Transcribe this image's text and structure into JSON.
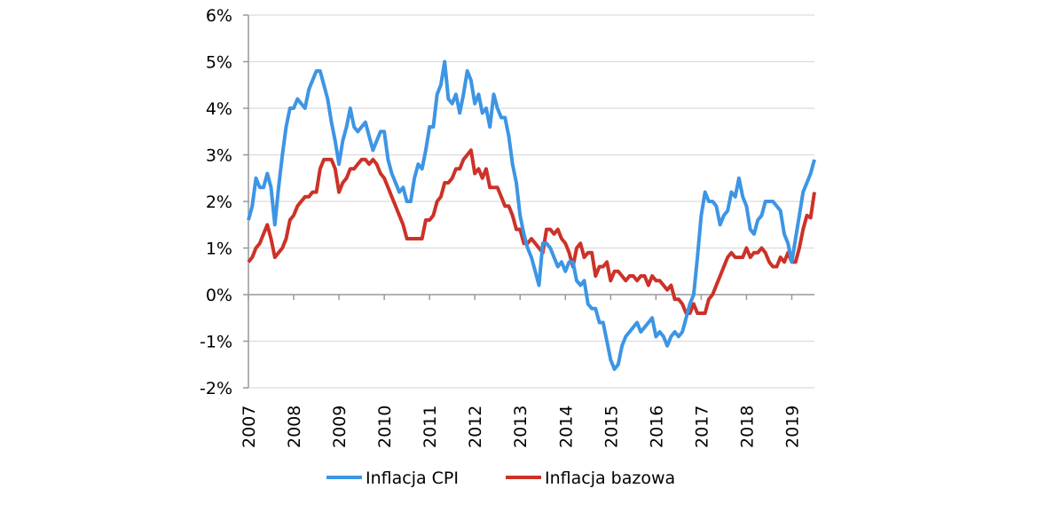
{
  "chart_data": {
    "type": "line",
    "title": "",
    "xlabel": "",
    "ylabel": "",
    "x_start": "2007-01",
    "x_end": "2019-07",
    "x_frequency": "monthly",
    "x_tick_labels": [
      "2007",
      "2008",
      "2009",
      "2010",
      "2011",
      "2012",
      "2013",
      "2014",
      "2015",
      "2016",
      "2017",
      "2018",
      "2019"
    ],
    "y_tick_labels": [
      "6%",
      "5%",
      "4%",
      "3%",
      "2%",
      "1%",
      "0%",
      "-1%",
      "-2%"
    ],
    "ylim": [
      -2,
      6
    ],
    "grid": "horizontal",
    "legend_position": "bottom",
    "series": [
      {
        "name": "Inflacja CPI",
        "color": "#3d95e4",
        "values": [
          1.6,
          1.9,
          2.5,
          2.3,
          2.3,
          2.6,
          2.3,
          1.5,
          2.3,
          3.0,
          3.6,
          4.0,
          4.0,
          4.2,
          4.1,
          4.0,
          4.4,
          4.6,
          4.8,
          4.8,
          4.5,
          4.2,
          3.7,
          3.3,
          2.8,
          3.3,
          3.6,
          4.0,
          3.6,
          3.5,
          3.6,
          3.7,
          3.4,
          3.1,
          3.3,
          3.5,
          3.5,
          2.9,
          2.6,
          2.4,
          2.2,
          2.3,
          2.0,
          2.0,
          2.5,
          2.8,
          2.7,
          3.1,
          3.6,
          3.6,
          4.3,
          4.5,
          5.0,
          4.2,
          4.1,
          4.3,
          3.9,
          4.3,
          4.8,
          4.6,
          4.1,
          4.3,
          3.9,
          4.0,
          3.6,
          4.3,
          4.0,
          3.8,
          3.8,
          3.4,
          2.8,
          2.4,
          1.7,
          1.3,
          1.0,
          0.8,
          0.5,
          0.2,
          1.1,
          1.1,
          1.0,
          0.8,
          0.6,
          0.7,
          0.5,
          0.7,
          0.7,
          0.3,
          0.2,
          0.3,
          -0.2,
          -0.3,
          -0.3,
          -0.6,
          -0.6,
          -1.0,
          -1.4,
          -1.6,
          -1.5,
          -1.1,
          -0.9,
          -0.8,
          -0.7,
          -0.6,
          -0.8,
          -0.7,
          -0.6,
          -0.5,
          -0.9,
          -0.8,
          -0.9,
          -1.1,
          -0.9,
          -0.8,
          -0.9,
          -0.8,
          -0.5,
          -0.2,
          0.0,
          0.8,
          1.7,
          2.2,
          2.0,
          2.0,
          1.9,
          1.5,
          1.7,
          1.8,
          2.2,
          2.1,
          2.5,
          2.1,
          1.9,
          1.4,
          1.3,
          1.6,
          1.7,
          2.0,
          2.0,
          2.0,
          1.9,
          1.8,
          1.3,
          1.1,
          0.7,
          1.2,
          1.7,
          2.2,
          2.4,
          2.6,
          2.9
        ]
      },
      {
        "name": "Inflacja bazowa",
        "color": "#cc3228",
        "values": [
          0.7,
          0.8,
          1.0,
          1.1,
          1.3,
          1.5,
          1.2,
          0.8,
          0.9,
          1.0,
          1.2,
          1.6,
          1.7,
          1.9,
          2.0,
          2.1,
          2.1,
          2.2,
          2.2,
          2.7,
          2.9,
          2.9,
          2.9,
          2.7,
          2.2,
          2.4,
          2.5,
          2.7,
          2.7,
          2.8,
          2.9,
          2.9,
          2.8,
          2.9,
          2.8,
          2.6,
          2.5,
          2.3,
          2.1,
          1.9,
          1.7,
          1.5,
          1.2,
          1.2,
          1.2,
          1.2,
          1.2,
          1.6,
          1.6,
          1.7,
          2.0,
          2.1,
          2.4,
          2.4,
          2.5,
          2.7,
          2.7,
          2.9,
          3.0,
          3.1,
          2.6,
          2.7,
          2.5,
          2.7,
          2.3,
          2.3,
          2.3,
          2.1,
          1.9,
          1.9,
          1.7,
          1.4,
          1.4,
          1.1,
          1.1,
          1.2,
          1.1,
          1.0,
          0.9,
          1.4,
          1.4,
          1.3,
          1.4,
          1.2,
          1.1,
          0.9,
          0.6,
          1.0,
          1.1,
          0.8,
          0.9,
          0.9,
          0.4,
          0.6,
          0.6,
          0.7,
          0.3,
          0.5,
          0.5,
          0.4,
          0.3,
          0.4,
          0.4,
          0.3,
          0.4,
          0.4,
          0.2,
          0.4,
          0.3,
          0.3,
          0.2,
          0.1,
          0.2,
          -0.1,
          -0.1,
          -0.2,
          -0.4,
          -0.4,
          -0.2,
          -0.4,
          -0.4,
          -0.4,
          -0.1,
          0.0,
          0.2,
          0.4,
          0.6,
          0.8,
          0.9,
          0.8,
          0.8,
          0.8,
          1.0,
          0.8,
          0.9,
          0.9,
          1.0,
          0.9,
          0.7,
          0.6,
          0.6,
          0.8,
          0.7,
          0.9,
          0.7,
          0.7,
          1.0,
          1.4,
          1.7,
          1.65,
          2.2
        ]
      }
    ]
  }
}
